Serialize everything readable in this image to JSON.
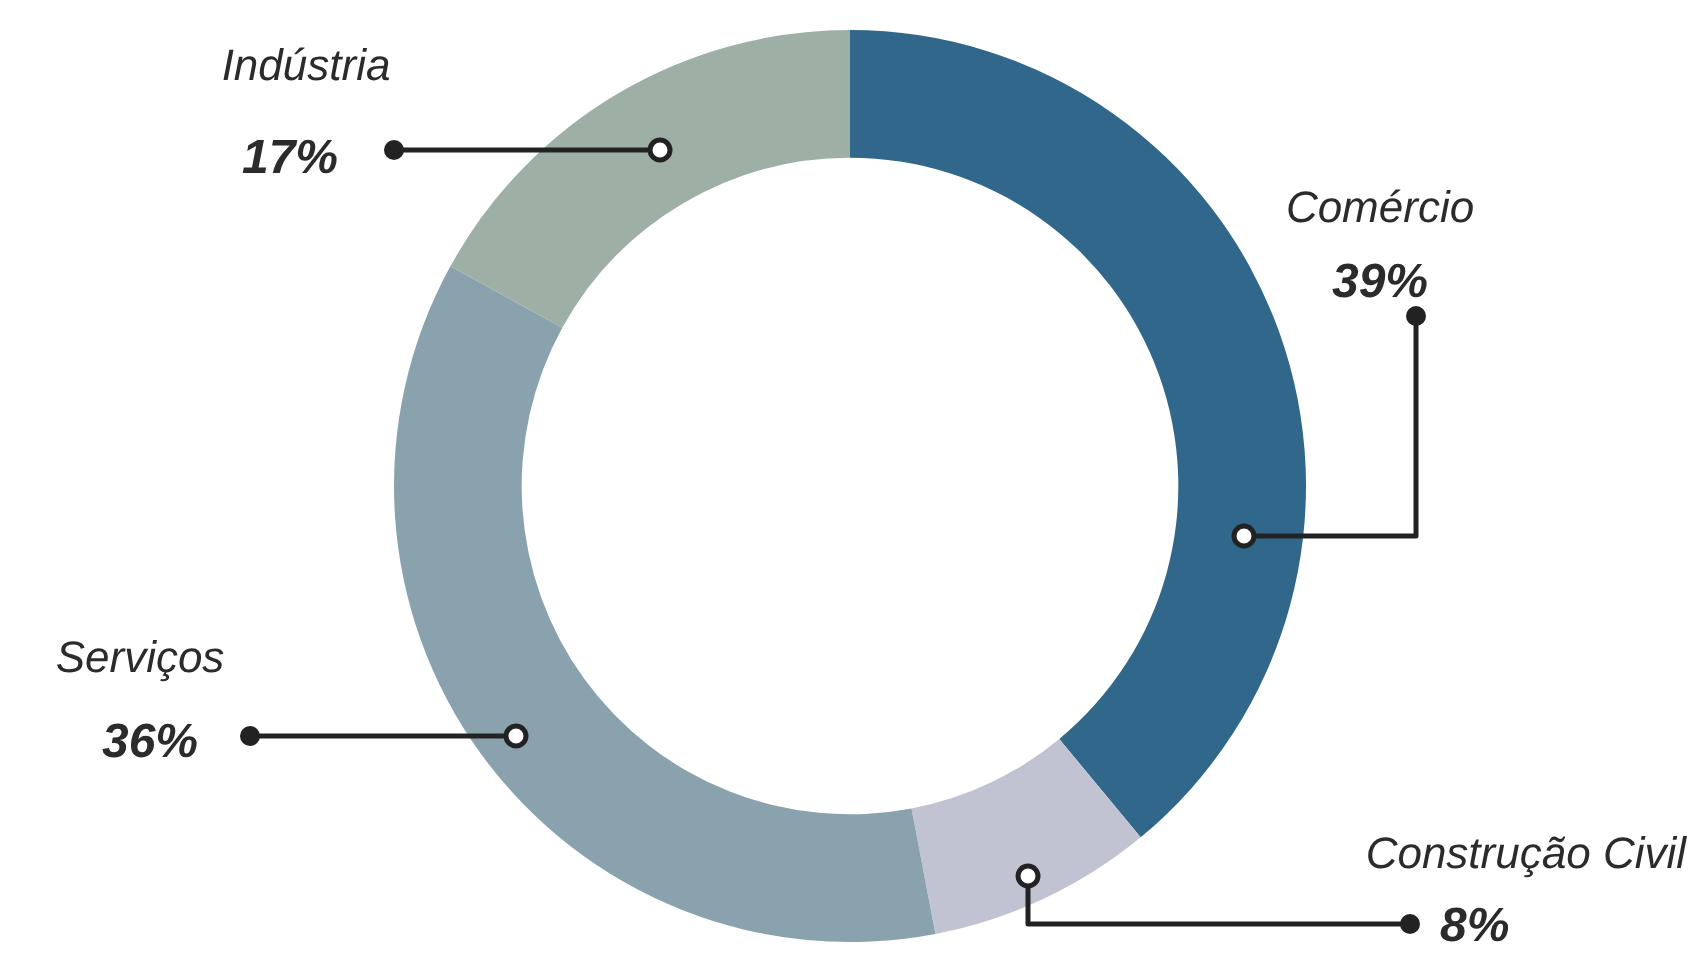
{
  "chart_data": {
    "type": "donut",
    "categories": [
      "Comércio",
      "Construção Civil",
      "Serviços",
      "Indústria"
    ],
    "values": [
      39,
      8,
      36,
      17
    ],
    "colors": [
      "#30678a",
      "#c1c3d3",
      "#8aa2ae",
      "#9eb0a6"
    ],
    "value_labels": [
      "39%",
      "8%",
      "36%",
      "17%"
    ],
    "legend": false
  }
}
